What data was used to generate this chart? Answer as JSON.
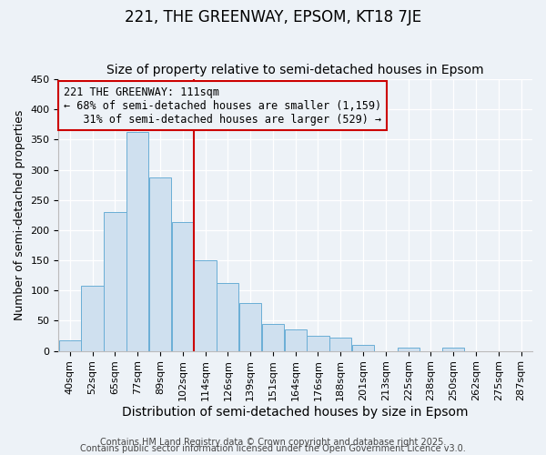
{
  "title": "221, THE GREENWAY, EPSOM, KT18 7JE",
  "subtitle": "Size of property relative to semi-detached houses in Epsom",
  "xlabel": "Distribution of semi-detached houses by size in Epsom",
  "ylabel": "Number of semi-detached properties",
  "footnote1": "Contains HM Land Registry data © Crown copyright and database right 2025.",
  "footnote2": "Contains public sector information licensed under the Open Government Licence v3.0.",
  "bin_labels": [
    "40sqm",
    "52sqm",
    "65sqm",
    "77sqm",
    "89sqm",
    "102sqm",
    "114sqm",
    "126sqm",
    "139sqm",
    "151sqm",
    "164sqm",
    "176sqm",
    "188sqm",
    "201sqm",
    "213sqm",
    "225sqm",
    "238sqm",
    "250sqm",
    "262sqm",
    "275sqm",
    "287sqm"
  ],
  "counts": [
    17,
    108,
    230,
    362,
    287,
    213,
    150,
    112,
    80,
    45,
    35,
    25,
    22,
    10,
    0,
    5,
    0,
    5,
    0,
    0,
    0
  ],
  "bar_color": "#cfe0ef",
  "bar_edge_color": "#6aaed6",
  "vline_index": 6.0,
  "vline_color": "#cc0000",
  "box_edge_color": "#cc0000",
  "annotation_line1": "221 THE GREENWAY: 111sqm",
  "annotation_line2": "← 68% of semi-detached houses are smaller (1,159)",
  "annotation_line3": "   31% of semi-detached houses are larger (529) →",
  "ylim": [
    0,
    450
  ],
  "yticks": [
    0,
    50,
    100,
    150,
    200,
    250,
    300,
    350,
    400,
    450
  ],
  "background_color": "#edf2f7",
  "grid_color": "#ffffff",
  "title_fontsize": 12,
  "subtitle_fontsize": 10,
  "xlabel_fontsize": 10,
  "ylabel_fontsize": 9,
  "tick_fontsize": 8,
  "annotation_fontsize": 8.5,
  "footnote_fontsize": 7
}
